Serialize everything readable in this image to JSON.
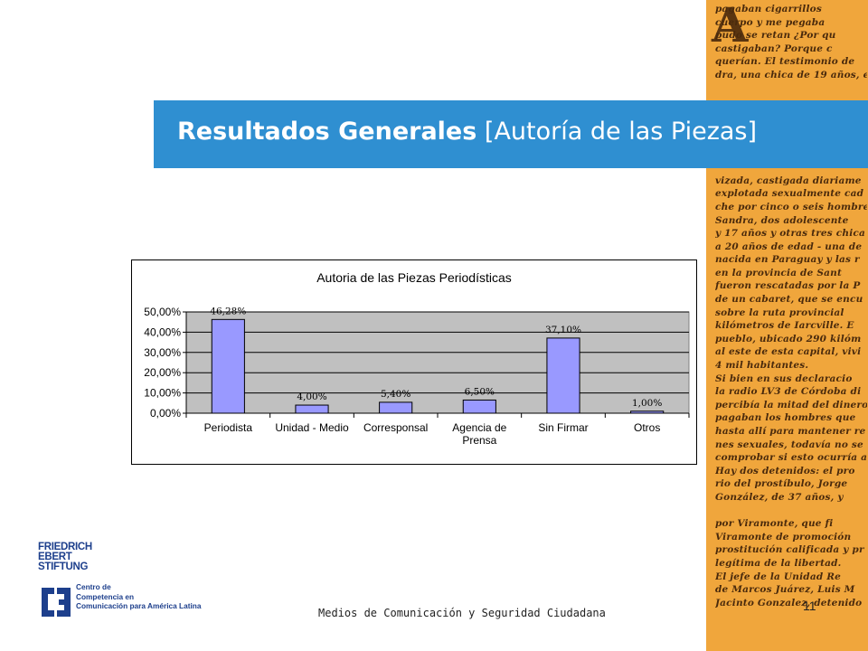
{
  "slide": {
    "title_bold": "Resultados Generales",
    "title_normal": "[Autoría de las Piezas]",
    "footer": "Medios de Comunicación y Seguridad Ciudadana",
    "page_number": "11"
  },
  "logo": {
    "fes_lines": [
      "FRIEDRICH",
      "EBERT",
      "STIFTUNG"
    ],
    "c3_lines": [
      "Centro de",
      "Competencia en",
      "Comunicación para América Latina"
    ]
  },
  "decoration": {
    "big_letter": "A",
    "newspaper_lines": [
      "pagaban cigarrillos",
      "cuerpo y me pegaba",
      "pudo se retan ¿Por qu",
      "castigaban? Porque c",
      "querían. El testimonio de",
      "dra, una chica de 19 años, e",
      "",
      "",
      "",
      "",
      "",
      "",
      "",
      "vizada, castigada diariame",
      "explotada sexualmente cad",
      "che por cinco o seis hombre",
      "Sandra, dos adolescente",
      "y 17 años y otras tres chica",
      "a 20 años de edad - una de",
      "nacida en Paraguay y las r",
      "en la provincia de Sant",
      "fueron rescatadas por la P",
      "de un cabaret, que se encu",
      "sobre la ruta provincial",
      "kilómetros de Iarcville. E",
      "pueblo, ubicado 290 kilóm",
      "al este de esta capital, vivi",
      "4 mil habitantes.",
      "Si bien en sus declaracio",
      "la radio LV3 de Córdoba di",
      "percibía la mitad del dinero",
      "pagaban los hombres que",
      "hasta allí para mantener re",
      "nes sexuales, todavía no se",
      "comprobar si esto ocurría a",
      "Hay dos detenidos: el pro",
      "rio del prostíbulo, Jorge",
      "González, de 37 años, y",
      "",
      "por Viramonte, que fi",
      "Viramonte de promoción",
      "prostitución calificada y pr",
      "legítima de la libertad.",
      "El jefe de la Unidad Re",
      "de Marcos Juárez, Luis M",
      "Jacinto Gonzalez, detenido"
    ],
    "colors": {
      "strip": "#f0a63c",
      "ink": "#4a2a0c"
    }
  },
  "colors": {
    "title_band": "#2f8fd1",
    "title_text": "#ffffff",
    "bar_fill": "#9999ff",
    "plot_area": "#c0c0c0"
  },
  "chart_data": {
    "type": "bar",
    "title": "Autoria de las Piezas Periodísticas",
    "categories": [
      [
        "Periodista"
      ],
      [
        "Unidad - Medio"
      ],
      [
        "Corresponsal"
      ],
      [
        "Agencia de",
        "Prensa"
      ],
      [
        "Sin Firmar"
      ],
      [
        "Otros"
      ]
    ],
    "values": [
      46.28,
      4.0,
      5.4,
      6.5,
      37.1,
      1.0
    ],
    "data_labels": [
      "46,28%",
      "4,00%",
      "5,40%",
      "6,50%",
      "37,10%",
      "1,00%"
    ],
    "y_ticks": [
      "0,00%",
      "10,00%",
      "20,00%",
      "30,00%",
      "40,00%",
      "50,00%"
    ],
    "ylim": [
      0,
      50
    ],
    "xlabel": "",
    "ylabel": "",
    "grid": true,
    "legend": "none"
  }
}
